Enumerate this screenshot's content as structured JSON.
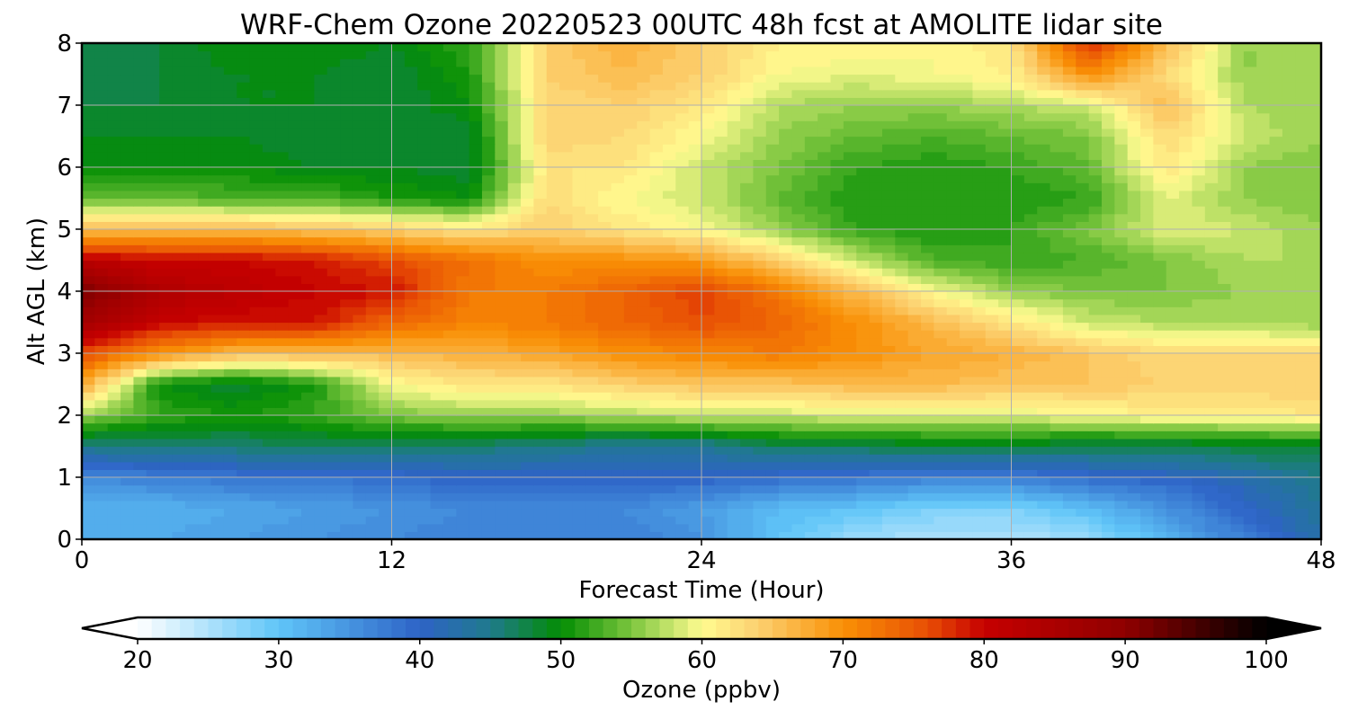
{
  "chart_data": {
    "type": "heatmap",
    "title": "WRF-Chem Ozone  20220523 00UTC 48h fcst at AMOLITE lidar site",
    "xlabel": "Forecast Time (Hour)",
    "ylabel": "Alt AGL (km)",
    "xlim": [
      0,
      48
    ],
    "ylim": [
      0,
      8
    ],
    "x_ticks": [
      0,
      12,
      24,
      36,
      48
    ],
    "y_ticks": [
      0,
      1,
      2,
      3,
      4,
      5,
      6,
      7,
      8
    ],
    "grid": true,
    "colorbar": {
      "label": "Ozone  (ppbv)",
      "min": 20,
      "max": 100,
      "step": 1,
      "ticks": [
        20,
        30,
        40,
        50,
        60,
        70,
        80,
        90,
        100
      ],
      "extend": "both",
      "color_stops": [
        [
          20,
          "#ffffff"
        ],
        [
          30,
          "#5fc5f8"
        ],
        [
          40,
          "#2e63c7"
        ],
        [
          45,
          "#1f7a8c"
        ],
        [
          50,
          "#038d03"
        ],
        [
          55,
          "#7cc63e"
        ],
        [
          60,
          "#fffb90"
        ],
        [
          64,
          "#fcd070"
        ],
        [
          70,
          "#f99005"
        ],
        [
          76,
          "#e84e05"
        ],
        [
          80,
          "#c60000"
        ],
        [
          90,
          "#8f0000"
        ],
        [
          100,
          "#000000"
        ]
      ]
    },
    "x": [
      0,
      3,
      6,
      9,
      12,
      15,
      18,
      21,
      24,
      27,
      30,
      33,
      36,
      39,
      42,
      45,
      48
    ],
    "y": [
      0,
      0.5,
      1,
      1.5,
      2,
      2.5,
      3,
      3.5,
      4,
      4.5,
      5,
      5.5,
      6,
      6.5,
      7,
      7.5,
      8
    ],
    "z": [
      [
        33,
        33,
        34,
        35,
        36,
        37,
        37,
        37,
        35,
        30,
        26,
        25,
        25,
        26,
        32,
        37,
        43
      ],
      [
        32,
        32,
        33,
        34,
        35,
        36,
        36,
        36,
        34,
        31,
        30,
        28,
        28,
        31,
        35,
        40,
        44
      ],
      [
        36,
        37,
        38,
        38,
        39,
        40,
        40,
        40,
        40,
        39,
        38,
        37,
        37,
        39,
        40,
        42,
        45
      ],
      [
        45,
        46,
        46,
        47,
        46,
        46,
        45,
        44,
        44,
        47,
        47,
        48,
        48,
        47,
        47,
        48,
        48
      ],
      [
        56,
        52,
        51,
        52,
        55,
        56,
        56,
        57,
        58,
        58,
        59,
        59,
        59,
        60,
        61,
        61,
        62
      ],
      [
        68,
        50,
        48,
        51,
        60,
        62,
        62,
        64,
        65,
        65,
        66,
        66,
        65,
        65,
        64,
        64,
        64
      ],
      [
        76,
        70,
        66,
        66,
        66,
        67,
        68,
        70,
        71,
        72,
        70,
        68,
        67,
        65,
        63,
        63,
        63
      ],
      [
        86,
        80,
        79,
        79,
        74,
        71,
        72,
        74,
        76,
        74,
        70,
        66,
        62,
        58,
        57,
        57,
        56
      ],
      [
        92,
        84,
        82,
        80,
        79,
        72,
        72,
        74,
        77,
        72,
        66,
        60,
        56,
        55,
        55,
        56,
        57
      ],
      [
        82,
        80,
        80,
        79,
        76,
        73,
        70,
        70,
        69,
        64,
        58,
        53,
        52,
        53,
        55,
        57,
        57
      ],
      [
        66,
        66,
        66,
        65,
        64,
        62,
        64,
        62,
        60,
        56,
        52,
        51,
        52,
        55,
        59,
        58,
        56
      ],
      [
        54,
        54,
        53,
        53,
        51,
        50,
        63,
        60,
        58,
        54,
        51,
        51,
        51,
        52,
        59,
        56,
        55
      ],
      [
        50,
        50,
        50,
        49,
        49,
        48,
        62,
        62,
        58,
        55,
        52,
        51,
        52,
        54,
        62,
        56,
        55
      ],
      [
        49,
        49,
        49,
        48,
        48,
        48,
        64,
        63,
        60,
        56,
        54,
        53,
        54,
        55,
        63,
        58,
        56
      ],
      [
        48,
        48,
        49,
        49,
        48,
        50,
        63,
        64,
        62,
        57,
        56,
        56,
        57,
        58,
        66,
        57,
        56
      ],
      [
        47,
        48,
        49,
        49,
        48,
        51,
        64,
        66,
        64,
        60,
        59,
        60,
        61,
        70,
        63,
        56,
        56
      ],
      [
        47,
        48,
        50,
        50,
        49,
        52,
        64,
        67,
        64,
        61,
        61,
        60,
        62,
        78,
        66,
        56,
        56
      ]
    ]
  }
}
